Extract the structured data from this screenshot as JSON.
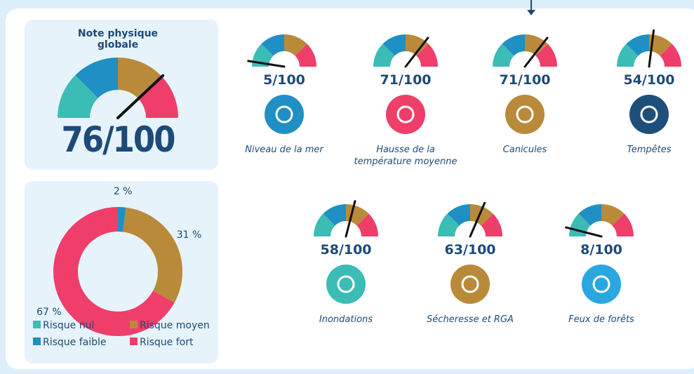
{
  "chart_data": [
    {
      "type": "gauge",
      "title": "Note physique globale",
      "values": [
        76
      ],
      "value_labels": [
        "76/100"
      ],
      "ylim": [
        0,
        100
      ],
      "colors": [
        "#3bbcb5",
        "#1f8fc4",
        "#b98a3a",
        "#ef3e6a"
      ]
    },
    {
      "type": "pie",
      "categories": [
        "Risque nul",
        "Risque faible",
        "Risque moyen",
        "Risque fort"
      ],
      "values": [
        0,
        2,
        31,
        67
      ],
      "value_labels": [
        null,
        "2 %",
        "31 %",
        "67 %"
      ],
      "colors": [
        "#3bbcb5",
        "#1f8fc4",
        "#b98a3a",
        "#ef3e6a"
      ]
    },
    {
      "type": "gauge",
      "title": "Niveau de la mer",
      "values": [
        5
      ],
      "value_labels": [
        "5/100"
      ],
      "ylim": [
        0,
        100
      ],
      "colors": [
        "#3bbcb5",
        "#1f8fc4",
        "#b98a3a",
        "#ef3e6a"
      ],
      "icon_color": "#1f8fc4"
    },
    {
      "type": "gauge",
      "title": "Hausse de la température moyenne",
      "values": [
        71
      ],
      "value_labels": [
        "71/100"
      ],
      "ylim": [
        0,
        100
      ],
      "colors": [
        "#3bbcb5",
        "#1f8fc4",
        "#b98a3a",
        "#ef3e6a"
      ],
      "icon_color": "#ef3e6a"
    },
    {
      "type": "gauge",
      "title": "Canicules",
      "values": [
        71
      ],
      "value_labels": [
        "71/100"
      ],
      "ylim": [
        0,
        100
      ],
      "colors": [
        "#3bbcb5",
        "#1f8fc4",
        "#b98a3a",
        "#ef3e6a"
      ],
      "icon_color": "#b98a3a"
    },
    {
      "type": "gauge",
      "title": "Tempêtes",
      "values": [
        54
      ],
      "value_labels": [
        "54/100"
      ],
      "ylim": [
        0,
        100
      ],
      "colors": [
        "#3bbcb5",
        "#1f8fc4",
        "#b98a3a",
        "#ef3e6a"
      ],
      "icon_color": "#1d4f7a"
    },
    {
      "type": "gauge",
      "title": "Inondations",
      "values": [
        58
      ],
      "value_labels": [
        "58/100"
      ],
      "ylim": [
        0,
        100
      ],
      "colors": [
        "#3bbcb5",
        "#1f8fc4",
        "#b98a3a",
        "#ef3e6a"
      ],
      "icon_color": "#3bbcb5"
    },
    {
      "type": "gauge",
      "title": "Sécheresse et RGA",
      "values": [
        63
      ],
      "value_labels": [
        "63/100"
      ],
      "ylim": [
        0,
        100
      ],
      "colors": [
        "#3bbcb5",
        "#1f8fc4",
        "#b98a3a",
        "#ef3e6a"
      ],
      "icon_color": "#b98a3a"
    },
    {
      "type": "gauge",
      "title": "Feux de forêts",
      "values": [
        8
      ],
      "value_labels": [
        "8/100"
      ],
      "ylim": [
        0,
        100
      ],
      "colors": [
        "#3bbcb5",
        "#1f8fc4",
        "#b98a3a",
        "#ef3e6a"
      ],
      "icon_color": "#2aa7df"
    }
  ]
}
